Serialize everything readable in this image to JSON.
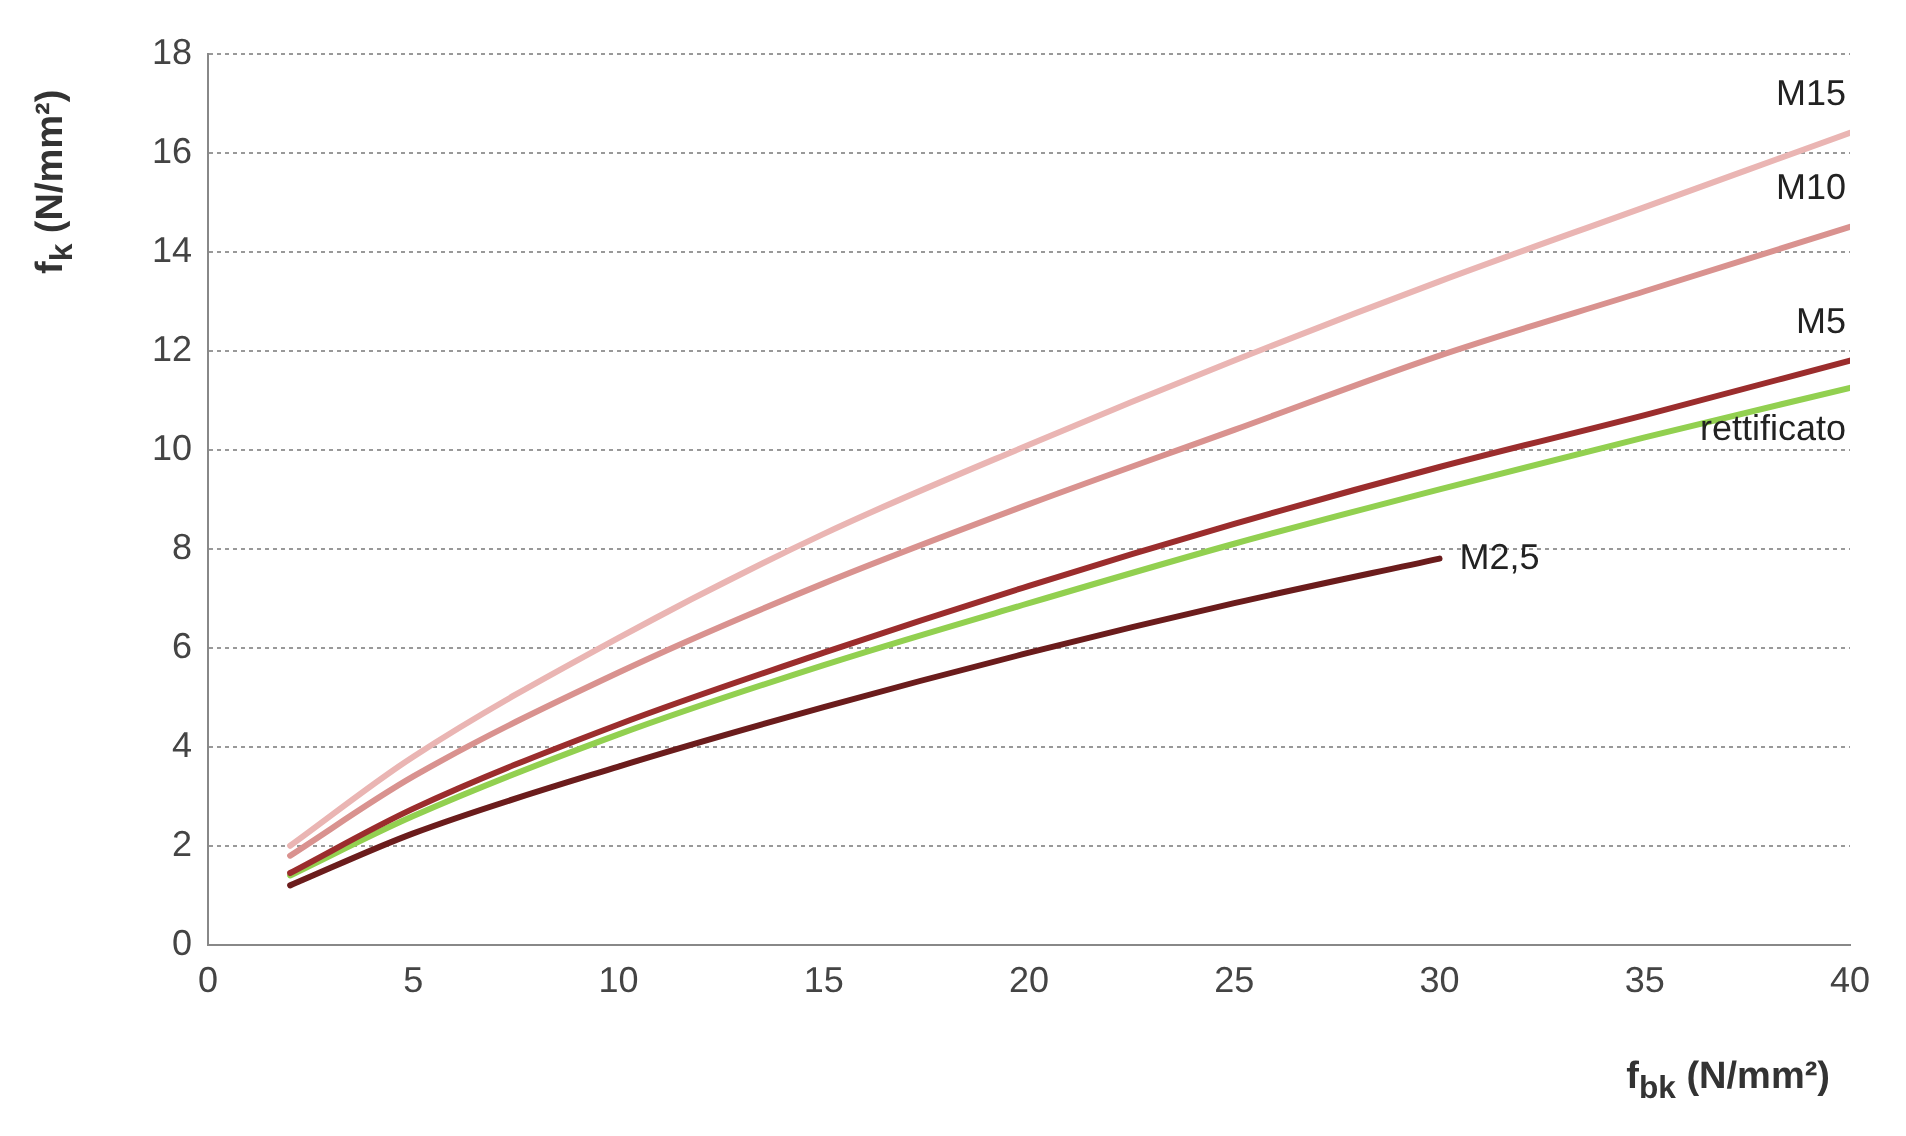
{
  "chart_data": {
    "type": "line",
    "xlabel": "f$_{bk}$ (N/mm²)",
    "ylabel": "f$_{k}$ (N/mm²)",
    "x": [
      2,
      5,
      10,
      15,
      20,
      25,
      30,
      35,
      40
    ],
    "series": [
      {
        "name": "M15",
        "color": "#eab5b3",
        "values": [
          2.0,
          3.8,
          6.2,
          8.3,
          10.1,
          11.8,
          13.4,
          14.9,
          16.4
        ]
      },
      {
        "name": "M10",
        "color": "#d9928f",
        "values": [
          1.8,
          3.4,
          5.5,
          7.3,
          8.9,
          10.4,
          11.9,
          13.2,
          14.5
        ]
      },
      {
        "name": "M5",
        "color": "#9b2d2d",
        "values": [
          1.45,
          2.75,
          4.45,
          5.9,
          7.25,
          8.5,
          9.65,
          10.7,
          11.8
        ]
      },
      {
        "name": "rettificato",
        "color": "#92d050",
        "values": [
          1.4,
          2.6,
          4.25,
          5.65,
          6.9,
          8.1,
          9.2,
          10.25,
          11.25
        ]
      },
      {
        "name": "M2,5",
        "color": "#6b1c1c",
        "values": [
          1.2,
          2.25,
          3.6,
          4.8,
          5.9,
          6.9,
          7.8,
          null,
          null
        ]
      }
    ],
    "xlim": [
      0,
      40
    ],
    "xticks": [
      0,
      5,
      10,
      15,
      20,
      25,
      30,
      35,
      40
    ],
    "ylim": [
      0,
      18
    ],
    "yticks": [
      0,
      2,
      4,
      6,
      8,
      10,
      12,
      14,
      16,
      18
    ],
    "grid": "y",
    "legend": false,
    "marker": "none",
    "line_style": "solid"
  }
}
